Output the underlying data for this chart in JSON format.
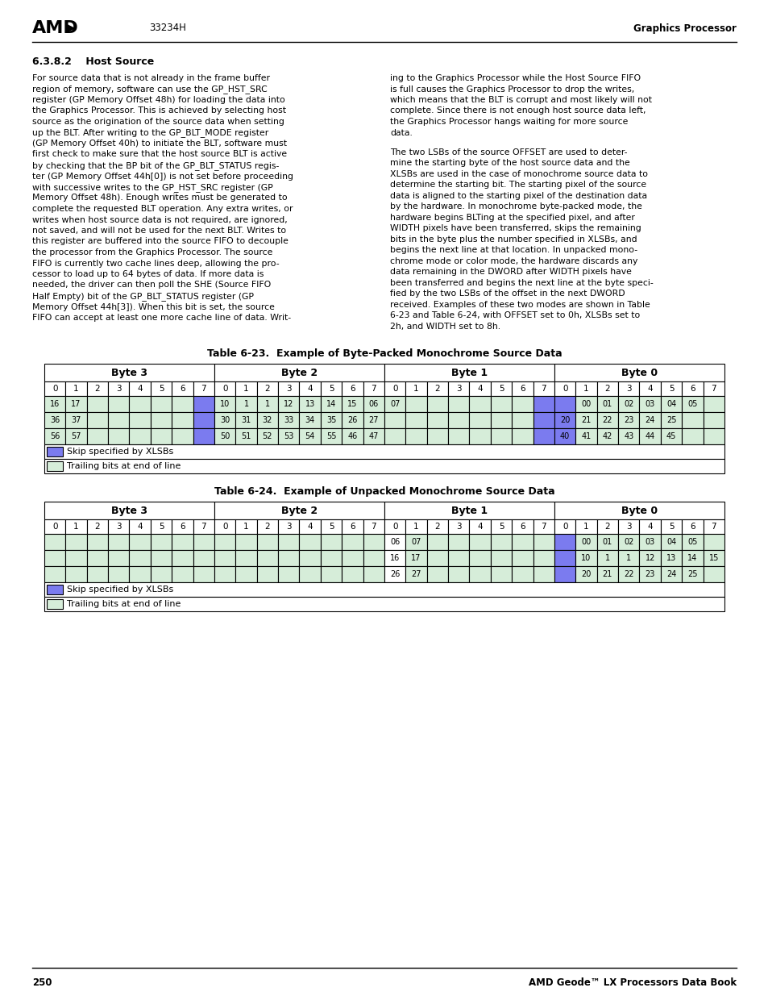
{
  "page_number": "250",
  "page_footer_right": "AMD Geode™ LX Processors Data Book",
  "header_center": "33234H",
  "header_right": "Graphics Processor",
  "section_title": "6.3.8.2    Host Source",
  "left_col_text": "For source data that is not already in the frame buffer region of memory, software can use the GP_HST_SRC register (GP Memory Offset 48h) for loading the data into the Graphics Processor. This is achieved by selecting host source as the origination of the source data when setting up the BLT. After writing to the GP_BLT_MODE register (GP Memory Offset 40h) to initiate the BLT, software must first check to make sure that the host source BLT is active by checking that the BP bit of the GP_BLT_STATUS register (GP Memory Offset 44h[0]) is not set before proceeding with successive writes to the GP_HST_SRC register (GP Memory Offset 48h). Enough writes must be generated to complete the requested BLT operation. Any extra writes, or writes when host source data is not required, are ignored, not saved, and will not be used for the next BLT. Writes to this register are buffered into the source FIFO to decouple the processor from the Graphics Processor. The source FIFO is currently two cache lines deep, allowing the processor to load up to 64 bytes of data. If more data is needed, the driver can then poll the SHE (Source FIFO Half Empty) bit of the GP_BLT_STATUS register (GP Memory Offset 44h[3]). When this bit is set, the source FIFO can accept at least one more cache line of data. Writ-",
  "right_col_para1": "ing to the Graphics Processor while the Host Source FIFO is full causes the Graphics Processor to drop the writes, which means that the BLT is corrupt and most likely will not complete. Since there is not enough host source data left, the Graphics Processor hangs waiting for more source data.",
  "right_col_para2": "The two LSBs of the source OFFSET are used to determine the starting byte of the host source data and the XLSBs are used in the case of monochrome source data to determine the starting bit. The starting pixel of the source data is aligned to the starting pixel of the destination data by the hardware. In monochrome byte-packed mode, the hardware begins BLTing at the specified pixel, and after WIDTH pixels have been transferred, skips the remaining bits in the byte plus the number specified in XLSBs, and begins the next line at that location. In unpacked monochrome mode or color mode, the hardware discards any data remaining in the DWORD after WIDTH pixels have been transferred and begins the next line at the byte specified by the two LSBs of the offset in the next DWORD received. Examples of these two modes are shown in Table 6-23 and Table 6-24, with OFFSET set to 0h, XLSBs set to 2h, and WIDTH set to 8h.",
  "table1_title": "Table 6-23.  Example of Byte-Packed Monochrome Source Data",
  "table2_title": "Table 6-24.  Example of Unpacked Monochrome Source Data",
  "color_green": "#d6edd9",
  "color_blue": "#7b7bef",
  "bit_row": [
    "0",
    "1",
    "2",
    "3",
    "4",
    "5",
    "6",
    "7",
    "0",
    "1",
    "2",
    "3",
    "4",
    "5",
    "6",
    "7",
    "0",
    "1",
    "2",
    "3",
    "4",
    "5",
    "6",
    "7",
    "0",
    "1",
    "2",
    "3",
    "4",
    "5",
    "6",
    "7"
  ],
  "table1_rows": [
    [
      "16",
      "17",
      "",
      "",
      "",
      "",
      "",
      "",
      "10",
      "1",
      "1",
      "12",
      "13",
      "14",
      "15",
      "06",
      "07",
      "",
      "",
      "",
      "",
      "",
      "",
      "",
      "",
      "00",
      "01",
      "02",
      "03",
      "04",
      "05"
    ],
    [
      "36",
      "37",
      "",
      "",
      "",
      "",
      "",
      "",
      "30",
      "31",
      "32",
      "33",
      "34",
      "35",
      "26",
      "27",
      "",
      "",
      "",
      "",
      "",
      "",
      "",
      "",
      "20",
      "21",
      "22",
      "23",
      "24",
      "25"
    ],
    [
      "56",
      "57",
      "",
      "",
      "",
      "",
      "",
      "",
      "50",
      "51",
      "52",
      "53",
      "54",
      "55",
      "46",
      "47",
      "",
      "",
      "",
      "",
      "",
      "",
      "",
      "",
      "40",
      "41",
      "42",
      "43",
      "44",
      "45"
    ]
  ],
  "table2_rows": [
    [
      "",
      "",
      "",
      "",
      "",
      "",
      "",
      "",
      "",
      "",
      "",
      "",
      "",
      "",
      "",
      "",
      "06",
      "07",
      "",
      "",
      "",
      "",
      "",
      "",
      "",
      "00",
      "01",
      "02",
      "03",
      "04",
      "05"
    ],
    [
      "",
      "",
      "",
      "",
      "",
      "",
      "",
      "",
      "",
      "",
      "",
      "",
      "",
      "",
      "",
      "",
      "16",
      "17",
      "",
      "",
      "",
      "",
      "",
      "",
      "",
      "10",
      "1",
      "1",
      "12",
      "13",
      "14",
      "15"
    ],
    [
      "",
      "",
      "",
      "",
      "",
      "",
      "",
      "",
      "",
      "",
      "",
      "",
      "",
      "",
      "",
      "",
      "26",
      "27",
      "",
      "",
      "",
      "",
      "",
      "",
      "",
      "20",
      "21",
      "22",
      "23",
      "24",
      "25"
    ]
  ],
  "legend_blue_label": "Skip specified by XLSBs",
  "legend_green_label": "Trailing bits at end of line"
}
